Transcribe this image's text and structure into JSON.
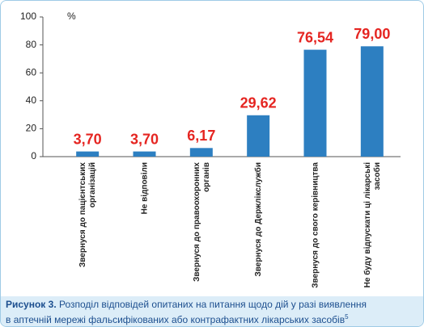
{
  "chart_data": {
    "type": "bar",
    "y_unit": "%",
    "categories": [
      "Звернуся до пацієнтських\nорганізацій",
      "Не відповіли",
      "Звернуся до правоохоронних\nорганів",
      "Звернуся до Держлікслужби",
      "Звернуся до свого керівництва",
      "Не буду відпускати ці лікарські\nзасоби"
    ],
    "values": [
      3.7,
      3.7,
      6.17,
      29.62,
      76.54,
      79.0
    ],
    "value_labels": [
      "3,70",
      "3,70",
      "6,17",
      "29,62",
      "76,54",
      "79,00"
    ],
    "color": "#2d7fc1",
    "value_label_color": "#e52521",
    "ylim": [
      0,
      100
    ],
    "yticks": [
      0,
      20,
      40,
      60,
      80,
      100
    ],
    "grid": false
  },
  "caption": {
    "label": "Рисунок 3.",
    "text": "Розподіл відповідей опитаних на питання щодо дій у разі виявлення\nв аптечній мережі фальсифікованих або контрафактних лікарських засобів",
    "note": "5"
  }
}
